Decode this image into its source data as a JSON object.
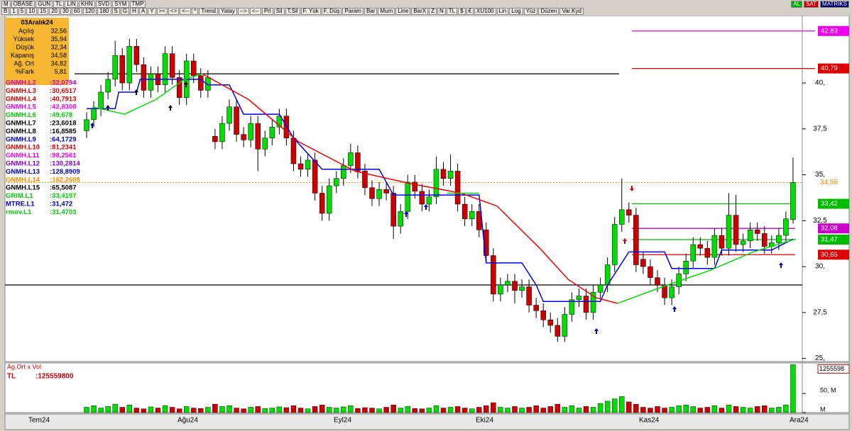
{
  "toolbar": {
    "row1": [
      "M",
      "OBASE",
      "GUN",
      "TL",
      "LIN",
      "KHN",
      "SVD",
      "SYM",
      "TMP"
    ],
    "row2": [
      "B",
      "1",
      "5",
      "10",
      "15",
      "20",
      "30",
      "60",
      "120",
      "180",
      "S",
      "G",
      "H",
      "A",
      "Y",
      "><",
      "<>",
      "<--",
      "*",
      "Trend",
      "Yatay",
      "-->",
      "<--",
      "Prl",
      "Sil",
      "T.Sil",
      "F. Yük",
      "F. Düş",
      "Param",
      "Bar",
      "Mum",
      "Line",
      "BarX",
      "Z",
      "N",
      "TL",
      "$",
      "€",
      "XU100",
      "Lin",
      "Log",
      "Yüz",
      "Düzen",
      "Var.Kyd"
    ],
    "right": [
      "AL",
      "SAT",
      "MATRIKS"
    ]
  },
  "info": {
    "date": "03Aralık24",
    "rows": [
      {
        "label": "Açılış",
        "value": "32,56"
      },
      {
        "label": "Yüksek",
        "value": "35,94"
      },
      {
        "label": "Düşük",
        "value": "32,34"
      },
      {
        "label": "Kapanış",
        "value": "34,58"
      },
      {
        "label": "Ağ. Ort",
        "value": "34,82"
      },
      {
        "label": "%Fark",
        "value": "5,81"
      }
    ]
  },
  "indicators": [
    {
      "name": "GNMH.L2",
      "value": ":32,0794",
      "color": "#cc00cc"
    },
    {
      "name": "GNMH.L3",
      "value": ":30,6517",
      "color": "#dd0000"
    },
    {
      "name": "GNMH.L4",
      "value": ":40,7913",
      "color": "#dd0000"
    },
    {
      "name": "GNMH.L5",
      "value": ":42,8308",
      "color": "#ee00ee"
    },
    {
      "name": "GNMH.L6",
      "value": ":49,678",
      "color": "#00cc00"
    },
    {
      "name": "GNMH.L7",
      "value": ":23,6018",
      "color": "#000000"
    },
    {
      "name": "GNMH.L8",
      "value": ":16,8585",
      "color": "#000000"
    },
    {
      "name": "GNMH.L9",
      "value": ":64,1729",
      "color": "#0000cc"
    },
    {
      "name": "GNMH.L10",
      "value": ":81,2341",
      "color": "#dd0000"
    },
    {
      "name": "GNMH.L11",
      "value": ":98,2561",
      "color": "#ee00ee"
    },
    {
      "name": "GNMH.L12",
      "value": ":130,2814",
      "color": "#8800cc"
    },
    {
      "name": "GNMH.L13",
      "value": ":128,8909",
      "color": "#0000cc"
    },
    {
      "name": "GNMH.L14",
      "value": ":162,2605",
      "color": "#ff8800"
    },
    {
      "name": "GNMH.L15",
      "value": ":65,5087",
      "color": "#000000"
    },
    {
      "name": "GRIM.L1",
      "value": ":33,4197",
      "color": "#00cc00"
    },
    {
      "name": "MTRE.L1",
      "value": ":31,472",
      "color": "#0000cc"
    },
    {
      "name": "rmov.L1",
      "value": ":31,4703",
      "color": "#00cc00"
    }
  ],
  "chart_data": {
    "type": "candlestick",
    "ylim": [
      24.83,
      43.67
    ],
    "yticks": [
      {
        "value": 40,
        "label": "40,"
      },
      {
        "value": 37.5,
        "label": "37,5"
      },
      {
        "value": 35,
        "label": "35,"
      },
      {
        "value": 32.5,
        "label": "32,5"
      },
      {
        "value": 30,
        "label": "30,"
      },
      {
        "value": 27.5,
        "label": "27,5"
      },
      {
        "value": 25,
        "label": "25,"
      }
    ],
    "up_color": "#00dd00",
    "down_color": "#cc0000",
    "candles": [
      [
        37.4,
        38.4,
        37.0,
        38.0
      ],
      [
        38.0,
        39.0,
        37.6,
        38.6
      ],
      [
        38.6,
        39.9,
        38.2,
        39.5
      ],
      [
        39.5,
        40.6,
        39.1,
        40.2
      ],
      [
        40.2,
        42.3,
        39.8,
        41.5
      ],
      [
        41.5,
        41.9,
        39.6,
        40.0
      ],
      [
        40.0,
        42.4,
        39.6,
        42.0
      ],
      [
        42.0,
        42.4,
        40.6,
        41.0
      ],
      [
        41.0,
        41.4,
        39.2,
        39.6
      ],
      [
        39.6,
        40.9,
        39.2,
        40.5
      ],
      [
        40.5,
        40.9,
        39.5,
        39.9
      ],
      [
        39.9,
        42.0,
        39.5,
        41.6
      ],
      [
        41.6,
        42.0,
        39.9,
        40.3
      ],
      [
        40.3,
        40.7,
        38.8,
        39.2
      ],
      [
        39.2,
        41.6,
        38.8,
        41.2
      ],
      [
        41.2,
        41.6,
        40.0,
        40.4
      ],
      [
        40.4,
        40.8,
        39.2,
        39.6
      ],
      [
        39.6,
        40.7,
        39.2,
        40.3
      ],
      [
        37.1,
        37.5,
        36.4,
        36.8
      ],
      [
        36.8,
        38.2,
        36.4,
        37.8
      ],
      [
        37.8,
        39.1,
        37.4,
        38.7
      ],
      [
        38.7,
        39.1,
        36.8,
        37.2
      ],
      [
        37.2,
        37.6,
        36.5,
        36.9
      ],
      [
        36.9,
        38.2,
        36.5,
        37.8
      ],
      [
        37.8,
        38.2,
        35.2,
        36.4
      ],
      [
        36.4,
        37.4,
        36.0,
        37.0
      ],
      [
        37.0,
        38.0,
        36.6,
        37.6
      ],
      [
        37.6,
        38.6,
        37.2,
        38.2
      ],
      [
        38.2,
        38.6,
        36.6,
        37.0
      ],
      [
        37.0,
        37.4,
        35.2,
        35.6
      ],
      [
        35.6,
        36.0,
        34.9,
        35.3
      ],
      [
        35.3,
        36.2,
        34.9,
        35.8
      ],
      [
        35.8,
        36.2,
        33.6,
        34.0
      ],
      [
        34.0,
        34.4,
        32.5,
        32.9
      ],
      [
        32.9,
        34.8,
        32.5,
        34.4
      ],
      [
        34.4,
        35.2,
        34.0,
        34.8
      ],
      [
        34.8,
        35.9,
        34.4,
        35.5
      ],
      [
        35.5,
        36.7,
        35.1,
        36.2
      ],
      [
        36.2,
        36.6,
        34.8,
        35.2
      ],
      [
        35.2,
        35.6,
        33.9,
        34.3
      ],
      [
        34.3,
        34.7,
        33.3,
        33.7
      ],
      [
        33.7,
        34.6,
        33.3,
        34.2
      ],
      [
        34.2,
        34.6,
        33.6,
        34.0
      ],
      [
        34.0,
        34.4,
        31.5,
        32.2
      ],
      [
        32.2,
        33.4,
        31.8,
        33.0
      ],
      [
        33.0,
        35.0,
        32.6,
        34.6
      ],
      [
        34.6,
        35.0,
        33.7,
        34.1
      ],
      [
        34.1,
        34.5,
        33.0,
        33.4
      ],
      [
        33.4,
        34.2,
        33.0,
        33.8
      ],
      [
        33.8,
        36.0,
        33.4,
        35.3
      ],
      [
        35.3,
        35.7,
        34.4,
        34.8
      ],
      [
        34.8,
        36.1,
        34.4,
        35.2
      ],
      [
        35.2,
        35.6,
        33.0,
        33.4
      ],
      [
        33.4,
        33.8,
        32.2,
        32.6
      ],
      [
        32.6,
        33.4,
        32.2,
        33.0
      ],
      [
        33.0,
        33.4,
        31.6,
        32.0
      ],
      [
        32.0,
        32.4,
        30.2,
        30.6
      ],
      [
        30.6,
        31.0,
        28.1,
        28.5
      ],
      [
        28.5,
        29.4,
        28.1,
        29.0
      ],
      [
        29.0,
        29.6,
        28.6,
        29.2
      ],
      [
        29.2,
        29.6,
        28.0,
        28.7
      ],
      [
        28.7,
        29.3,
        28.3,
        28.9
      ],
      [
        28.9,
        29.3,
        27.5,
        27.9
      ],
      [
        27.9,
        28.3,
        27.2,
        27.6
      ],
      [
        27.6,
        28.0,
        26.7,
        27.1
      ],
      [
        27.1,
        27.5,
        26.4,
        26.8
      ],
      [
        26.8,
        27.2,
        25.9,
        26.2
      ],
      [
        26.2,
        27.8,
        25.9,
        27.4
      ],
      [
        27.4,
        28.6,
        27.0,
        28.2
      ],
      [
        28.2,
        28.8,
        27.8,
        28.4
      ],
      [
        28.4,
        28.8,
        27.1,
        27.5
      ],
      [
        27.5,
        29.0,
        27.1,
        28.6
      ],
      [
        28.6,
        29.4,
        28.2,
        29.0
      ],
      [
        29.0,
        30.5,
        28.6,
        30.1
      ],
      [
        30.1,
        32.7,
        29.7,
        32.3
      ],
      [
        32.3,
        34.8,
        31.9,
        33.1
      ],
      [
        33.1,
        33.5,
        32.4,
        32.8
      ],
      [
        32.8,
        33.2,
        29.7,
        30.1
      ],
      [
        30.4,
        30.8,
        29.6,
        30.0
      ],
      [
        30.0,
        30.4,
        29.0,
        29.4
      ],
      [
        29.4,
        29.8,
        28.6,
        29.0
      ],
      [
        29.0,
        29.4,
        27.9,
        28.3
      ],
      [
        28.3,
        29.3,
        27.9,
        28.9
      ],
      [
        28.9,
        30.0,
        28.5,
        29.6
      ],
      [
        29.6,
        30.7,
        29.2,
        30.3
      ],
      [
        30.3,
        31.6,
        29.9,
        31.2
      ],
      [
        31.2,
        31.6,
        30.6,
        31.0
      ],
      [
        31.0,
        31.4,
        30.1,
        30.5
      ],
      [
        30.5,
        32.1,
        30.1,
        31.7
      ],
      [
        31.7,
        32.1,
        30.6,
        31.0
      ],
      [
        31.0,
        34.0,
        30.6,
        32.8
      ],
      [
        32.8,
        33.9,
        30.8,
        31.2
      ],
      [
        31.2,
        31.8,
        30.8,
        31.4
      ],
      [
        31.4,
        32.4,
        31.0,
        32.0
      ],
      [
        32.0,
        32.4,
        31.4,
        31.8
      ],
      [
        31.8,
        32.2,
        30.7,
        31.1
      ],
      [
        31.1,
        31.7,
        30.7,
        31.3
      ],
      [
        31.3,
        32.1,
        30.9,
        31.7
      ],
      [
        31.7,
        33.0,
        31.3,
        32.6
      ],
      [
        32.56,
        35.94,
        32.34,
        34.58
      ]
    ],
    "lines": [
      {
        "color": "#0000ee",
        "x": [
          0,
          4,
          4.5,
          7,
          7.5,
          16,
          17,
          20,
          22,
          27,
          29,
          33,
          41,
          43,
          55,
          56,
          61,
          63,
          64,
          72,
          73,
          76,
          81,
          82,
          88,
          89,
          96,
          99
        ],
        "values": [
          38.6,
          38.6,
          39.5,
          39.5,
          40.2,
          40.2,
          39.9,
          39.9,
          38.3,
          38.3,
          37.0,
          35.3,
          35.3,
          33.9,
          33.9,
          30.2,
          30.2,
          29.0,
          28.1,
          28.1,
          29.0,
          30.8,
          30.8,
          29.9,
          29.9,
          30.9,
          30.9,
          31.5
        ]
      },
      {
        "color": "#ee0000",
        "x": [
          16.2,
          22.7,
          29.7,
          37.6,
          45.6,
          52.5,
          57.5,
          63.5,
          67.5,
          71.4,
          74.4
        ],
        "values": [
          40.5,
          39.1,
          36.8,
          35.2,
          34.5,
          34.0,
          33.3,
          31.0,
          29.3,
          28.3,
          28.0
        ]
      },
      {
        "color": "#00dd00",
        "x": [
          0.8,
          5.3,
          9.7,
          13.7,
          16.2,
          null,
          50.5,
          55,
          null,
          74.4,
          81.4,
          87.4,
          93.4,
          99.4
        ],
        "values": [
          38.7,
          38.3,
          39.1,
          40.2,
          40.5,
          null,
          34.0,
          34.0,
          null,
          28.0,
          29.0,
          29.8,
          30.8,
          31.5
        ]
      }
    ],
    "levels": [
      {
        "value": 40.5,
        "color": "#000000"
      },
      {
        "value": 29.0,
        "color": "#000000"
      },
      {
        "value": 42.83,
        "label": "42,83",
        "color": "#ee00ee"
      },
      {
        "value": 40.79,
        "label": "40,79",
        "color": "#dd0000"
      },
      {
        "value": 33.42,
        "label": "33,42",
        "color": "#00bb00"
      },
      {
        "value": 32.08,
        "label": "32,08",
        "color": "#cc00cc"
      },
      {
        "value": 31.47,
        "label": "31,47",
        "color": "#00bb00"
      },
      {
        "value": 30.65,
        "label": "30,65",
        "color": "#dd0000"
      }
    ],
    "last_label": "34,58",
    "xlabels": [
      "Tem24",
      "Ağu24",
      "Eyl24",
      "Eki24",
      "Kas24",
      "Ara24"
    ],
    "volume": {
      "title": "Ag.Ort x Vol",
      "unit": "TL",
      "value_text": ":125559800",
      "last_label": "1255598",
      "ylim": [
        0,
        130
      ],
      "yticks": [
        {
          "value": 50,
          "label": "50, M"
        },
        {
          "value": 0,
          "label": "M"
        }
      ],
      "values": [
        14,
        18,
        12,
        16,
        22,
        14,
        20,
        12,
        10,
        15,
        12,
        18,
        14,
        10,
        16,
        12,
        11,
        14,
        22,
        16,
        18,
        12,
        10,
        14,
        16,
        11,
        12,
        15,
        13,
        18,
        12,
        10,
        16,
        20,
        14,
        12,
        15,
        18,
        11,
        13,
        12,
        10,
        14,
        20,
        12,
        16,
        11,
        10,
        12,
        18,
        12,
        14,
        16,
        12,
        10,
        14,
        18,
        26,
        14,
        12,
        16,
        12,
        14,
        18,
        12,
        16,
        22,
        14,
        18,
        12,
        16,
        14,
        24,
        30,
        36,
        42,
        28,
        22,
        14,
        12,
        16,
        12,
        14,
        18,
        20,
        16,
        12,
        14,
        18,
        12,
        20,
        16,
        14,
        12,
        16,
        18,
        12,
        14,
        20,
        125.5598
      ]
    }
  }
}
